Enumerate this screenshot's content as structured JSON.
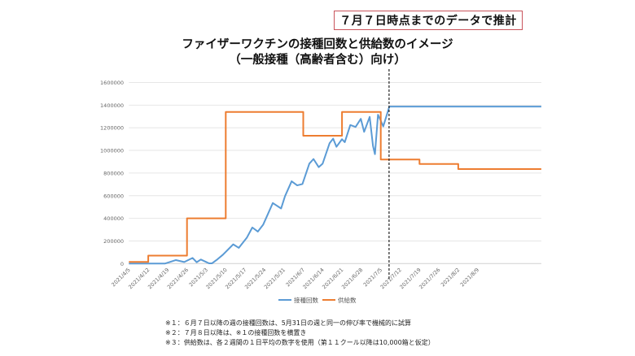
{
  "header": {
    "note": "７月７日時点までのデータで推計",
    "title_line1": "ファイザーワクチンの接種回数と供給数のイメージ",
    "title_line2": "（一般接種（高齢者含む）向け）"
  },
  "chart_data": {
    "type": "line",
    "title": "ファイザーワクチンの接種回数と供給数のイメージ（一般接種（高齢者含む）向け）",
    "xlabel": "",
    "ylabel": "",
    "ylim": [
      0,
      1600000
    ],
    "yticks": [
      0,
      200000,
      400000,
      600000,
      800000,
      1000000,
      1200000,
      1400000,
      1600000
    ],
    "ytick_labels": [
      "0",
      "200000",
      "400000",
      "600000",
      "800000",
      "1000000",
      "1200000",
      "1400000",
      "1600000"
    ],
    "x_unit": "days since 2021/4/5",
    "xlim": [
      0,
      149
    ],
    "xtick_days": [
      0,
      7,
      14,
      21,
      28,
      35,
      42,
      49,
      56,
      63,
      70,
      77,
      84,
      91,
      98,
      105,
      112,
      119,
      126
    ],
    "xtick_labels": [
      "2021/4/5",
      "2021/4/12",
      "2021/4/19",
      "2021/4/26",
      "2021/5/3",
      "2021/5/10",
      "2021/5/17",
      "2021/5/24",
      "2021/5/31",
      "2021/6/7",
      "2021/6/14",
      "2021/6/21",
      "2021/6/28",
      "2021/7/5",
      "2021/7/12",
      "2021/7/19",
      "2021/7/26",
      "2021/8/2",
      "2021/8/9"
    ],
    "grid": true,
    "legend_position": "bottom",
    "marker_line_day": 94,
    "series": [
      {
        "name": "接種回数",
        "color": "#5b9bd5",
        "x": [
          0,
          13,
          17,
          20,
          23,
          24.5,
          26,
          29,
          30,
          32,
          34,
          37.7,
          39.7,
          42.6,
          44.6,
          46.6,
          48.5,
          52,
          55,
          56.4,
          58.8,
          60.8,
          62.7,
          65.2,
          66.7,
          68.6,
          70,
          72.5,
          73.8,
          75,
          77,
          78,
          80,
          81.9,
          83.8,
          85,
          87,
          88.2,
          88.9,
          90,
          90.7,
          91.9,
          94.1,
          149
        ],
        "y": [
          0,
          0,
          31000,
          14000,
          50000,
          12000,
          36000,
          2000,
          2000,
          38000,
          79000,
          170000,
          139000,
          228000,
          319000,
          283000,
          343000,
          535000,
          487000,
          595000,
          727000,
          691000,
          703000,
          883000,
          924000,
          852000,
          883000,
          1063000,
          1104000,
          1032000,
          1099000,
          1073000,
          1224000,
          1207000,
          1279000,
          1164000,
          1296000,
          1039000,
          967000,
          1315000,
          1279000,
          1212000,
          1387000,
          1387000
        ]
      },
      {
        "name": "供給数",
        "color": "#ed7d31",
        "step": true,
        "x": [
          0,
          7,
          21,
          35,
          63,
          77,
          91,
          105,
          119,
          149
        ],
        "y": [
          15000,
          70000,
          400000,
          1340000,
          1130000,
          1340000,
          920000,
          880000,
          835000,
          835000
        ]
      }
    ]
  },
  "footnotes": [
    "※１：６月７日以降の週の接種回数は、5月31日の週と同一の伸び率で機械的に試算",
    "※２：７月８日以降は、※１の接種回数を横置き",
    "※３：供給数は、各２週間の１日平均の数字を使用（第１１クール以降は10,000箱と仮定）"
  ]
}
